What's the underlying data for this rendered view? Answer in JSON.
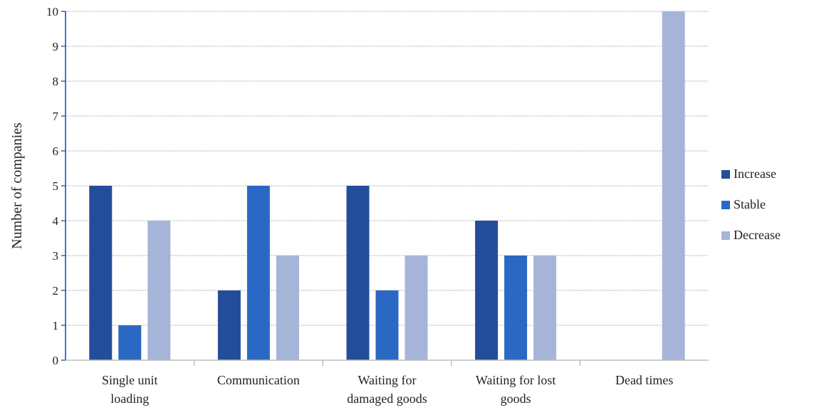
{
  "chart_data": {
    "type": "bar",
    "title": "",
    "xlabel": "",
    "ylabel": "Number of companies",
    "ylim": [
      0,
      10
    ],
    "yticks": [
      0,
      1,
      2,
      3,
      4,
      5,
      6,
      7,
      8,
      9,
      10
    ],
    "grid": true,
    "legend_position": "right",
    "categories": [
      [
        "Single unit",
        "loading"
      ],
      [
        "Communication"
      ],
      [
        "Waiting for",
        "damaged goods"
      ],
      [
        "Waiting for lost",
        "goods"
      ],
      [
        "Dead times"
      ]
    ],
    "series": [
      {
        "name": "Increase",
        "color": "#234d99",
        "values": [
          5,
          2,
          5,
          4,
          0
        ]
      },
      {
        "name": "Stable",
        "color": "#2b68c4",
        "values": [
          1,
          5,
          2,
          3,
          0
        ]
      },
      {
        "name": "Decrease",
        "color": "#a6b4d8",
        "values": [
          4,
          3,
          3,
          3,
          10
        ]
      }
    ]
  }
}
